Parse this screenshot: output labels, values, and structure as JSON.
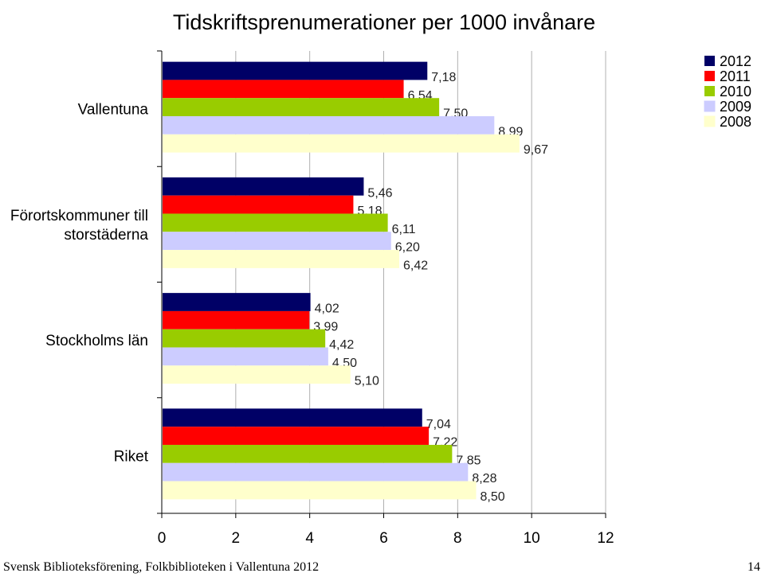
{
  "chart_data": {
    "type": "bar",
    "orientation": "horizontal",
    "title": "Tidskriftsprenumerationer per 1000 invånare",
    "categories": [
      "Vallentuna",
      "Förortskommuner till storstäderna",
      "Stockholms län",
      "Riket"
    ],
    "series": [
      {
        "name": "2012",
        "color": "#000066",
        "values": [
          7.18,
          5.46,
          4.02,
          7.04
        ],
        "labels": [
          "7,18",
          "5,46",
          "4,02",
          "7,04"
        ]
      },
      {
        "name": "2011",
        "color": "#FF0000",
        "values": [
          6.54,
          5.18,
          3.99,
          7.22
        ],
        "labels": [
          "6,54",
          "5,18",
          "3,99",
          "7,22"
        ]
      },
      {
        "name": "2010",
        "color": "#99CC00",
        "values": [
          7.5,
          6.11,
          4.42,
          7.85
        ],
        "labels": [
          "7,50",
          "6,11",
          "4,42",
          "7,85"
        ]
      },
      {
        "name": "2009",
        "color": "#CCCCFF",
        "values": [
          8.99,
          6.2,
          4.5,
          8.28
        ],
        "labels": [
          "8,99",
          "6,20",
          "4,50",
          "8,28"
        ]
      },
      {
        "name": "2008",
        "color": "#FFFFCC",
        "values": [
          9.67,
          6.42,
          5.1,
          8.5
        ],
        "labels": [
          "9,67",
          "6,42",
          "5,10",
          "8,50"
        ]
      }
    ],
    "xlim": [
      0,
      12
    ],
    "xticks": [
      0,
      2,
      4,
      6,
      8,
      10,
      12
    ],
    "grid": true,
    "legend": "top-right"
  },
  "footer": {
    "source": "Svensk Biblioteksförening, Folkbiblioteken i Vallentuna 2012",
    "page": "14"
  }
}
